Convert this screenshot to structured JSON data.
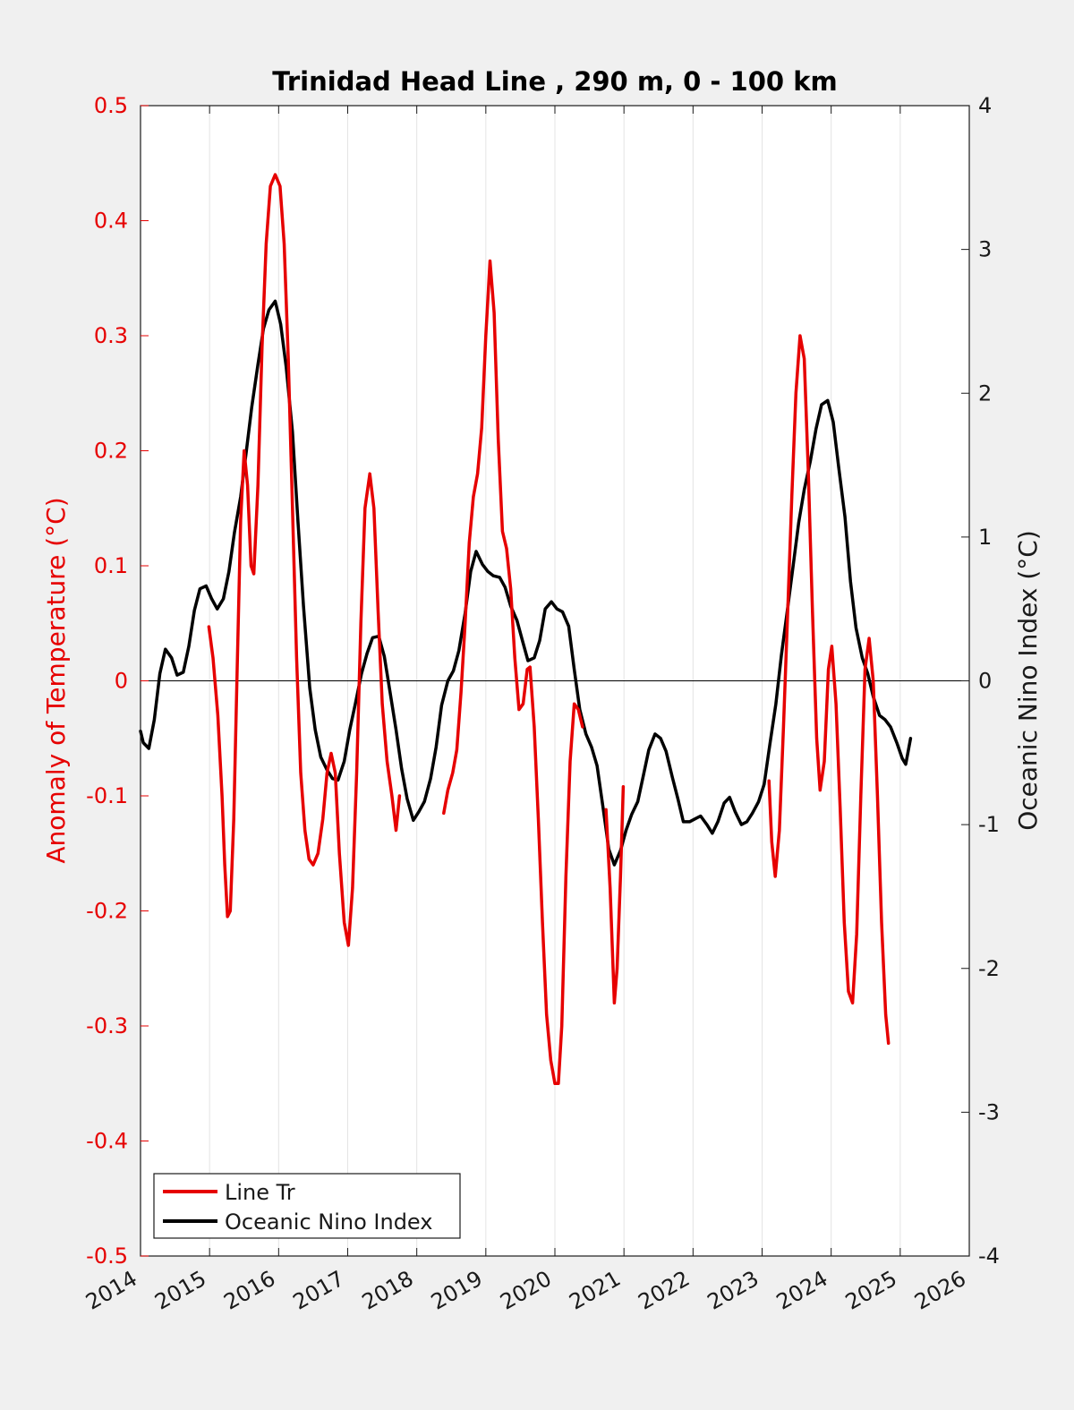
{
  "chart_data": {
    "type": "line",
    "title": "Trinidad Head Line , 290 m, 0 - 100 km",
    "ylabel_left": "Anomaly of Temperature (°C)",
    "ylabel_right": "Oceanic Nino Index (°C)",
    "xlim": [
      2014,
      2026
    ],
    "ylim_left": [
      -0.5,
      0.5
    ],
    "ylim_right": [
      -4,
      4
    ],
    "x_ticks": [
      "2014",
      "2015",
      "2016",
      "2017",
      "2018",
      "2019",
      "2020",
      "2021",
      "2022",
      "2023",
      "2024",
      "2025",
      "2026"
    ],
    "y_ticks_left": [
      "0.5",
      "0.4",
      "0.3",
      "0.2",
      "0.1",
      "0",
      "-0.1",
      "-0.2",
      "-0.3",
      "-0.4",
      "-0.5"
    ],
    "y_ticks_right": [
      "4",
      "3",
      "2",
      "1",
      "0",
      "-1",
      "-2",
      "-3",
      "-4"
    ],
    "grid": "vertical",
    "legend_position": "bottom-left",
    "colors": {
      "temperature": "#e60000",
      "oni": "#000000"
    },
    "series": [
      {
        "name": "Line Tr",
        "axis": "left",
        "segments": [
          [
            [
              2014.99,
              0.047
            ],
            [
              2015.05,
              0.02
            ],
            [
              2015.12,
              -0.03
            ],
            [
              2015.18,
              -0.1
            ],
            [
              2015.22,
              -0.16
            ],
            [
              2015.26,
              -0.205
            ],
            [
              2015.3,
              -0.2
            ],
            [
              2015.35,
              -0.12
            ],
            [
              2015.4,
              0.01
            ],
            [
              2015.45,
              0.14
            ],
            [
              2015.5,
              0.2
            ],
            [
              2015.55,
              0.17
            ],
            [
              2015.6,
              0.1
            ],
            [
              2015.64,
              0.093
            ],
            [
              2015.7,
              0.17
            ],
            [
              2015.76,
              0.29
            ],
            [
              2015.82,
              0.38
            ],
            [
              2015.88,
              0.43
            ],
            [
              2015.95,
              0.44
            ],
            [
              2016.02,
              0.43
            ],
            [
              2016.08,
              0.38
            ],
            [
              2016.14,
              0.28
            ],
            [
              2016.2,
              0.15
            ],
            [
              2016.26,
              0.02
            ],
            [
              2016.32,
              -0.08
            ],
            [
              2016.38,
              -0.13
            ],
            [
              2016.44,
              -0.155
            ],
            [
              2016.5,
              -0.16
            ],
            [
              2016.57,
              -0.15
            ],
            [
              2016.64,
              -0.12
            ],
            [
              2016.7,
              -0.08
            ],
            [
              2016.76,
              -0.063
            ],
            [
              2016.82,
              -0.08
            ],
            [
              2016.88,
              -0.15
            ],
            [
              2016.95,
              -0.21
            ],
            [
              2017.01,
              -0.23
            ],
            [
              2017.07,
              -0.18
            ],
            [
              2017.13,
              -0.08
            ],
            [
              2017.19,
              0.05
            ],
            [
              2017.25,
              0.15
            ],
            [
              2017.32,
              0.18
            ],
            [
              2017.38,
              0.15
            ],
            [
              2017.44,
              0.06
            ],
            [
              2017.5,
              -0.02
            ],
            [
              2017.57,
              -0.07
            ],
            [
              2017.64,
              -0.1
            ],
            [
              2017.7,
              -0.13
            ],
            [
              2017.75,
              -0.1
            ]
          ],
          [
            [
              2018.39,
              -0.115
            ],
            [
              2018.45,
              -0.095
            ],
            [
              2018.52,
              -0.08
            ],
            [
              2018.58,
              -0.06
            ],
            [
              2018.64,
              -0.01
            ],
            [
              2018.7,
              0.05
            ],
            [
              2018.76,
              0.12
            ],
            [
              2018.82,
              0.16
            ],
            [
              2018.88,
              0.18
            ],
            [
              2018.94,
              0.22
            ],
            [
              2019.0,
              0.3
            ],
            [
              2019.06,
              0.365
            ],
            [
              2019.12,
              0.32
            ],
            [
              2019.18,
              0.21
            ],
            [
              2019.24,
              0.13
            ],
            [
              2019.3,
              0.115
            ],
            [
              2019.36,
              0.08
            ],
            [
              2019.42,
              0.02
            ],
            [
              2019.48,
              -0.025
            ],
            [
              2019.54,
              -0.02
            ],
            [
              2019.6,
              0.01
            ],
            [
              2019.64,
              0.012
            ],
            [
              2019.7,
              -0.04
            ],
            [
              2019.76,
              -0.12
            ],
            [
              2019.82,
              -0.21
            ],
            [
              2019.88,
              -0.29
            ],
            [
              2019.94,
              -0.33
            ],
            [
              2020.0,
              -0.35
            ],
            [
              2020.05,
              -0.35
            ],
            [
              2020.1,
              -0.3
            ],
            [
              2020.16,
              -0.17
            ],
            [
              2020.22,
              -0.07
            ],
            [
              2020.28,
              -0.02
            ],
            [
              2020.34,
              -0.025
            ],
            [
              2020.4,
              -0.04
            ]
          ],
          [
            [
              2020.74,
              -0.112
            ],
            [
              2020.8,
              -0.18
            ],
            [
              2020.86,
              -0.28
            ],
            [
              2020.9,
              -0.25
            ],
            [
              2020.95,
              -0.17
            ],
            [
              2020.99,
              -0.092
            ]
          ],
          [
            [
              2023.1,
              -0.087
            ],
            [
              2023.14,
              -0.14
            ],
            [
              2023.19,
              -0.17
            ],
            [
              2023.25,
              -0.13
            ],
            [
              2023.31,
              -0.04
            ],
            [
              2023.37,
              0.06
            ],
            [
              2023.43,
              0.16
            ],
            [
              2023.49,
              0.25
            ],
            [
              2023.55,
              0.3
            ],
            [
              2023.61,
              0.28
            ],
            [
              2023.67,
              0.18
            ],
            [
              2023.73,
              0.06
            ],
            [
              2023.79,
              -0.05
            ],
            [
              2023.84,
              -0.095
            ],
            [
              2023.9,
              -0.07
            ],
            [
              2023.96,
              0.01
            ],
            [
              2024.01,
              0.03
            ],
            [
              2024.07,
              -0.02
            ],
            [
              2024.13,
              -0.11
            ],
            [
              2024.19,
              -0.21
            ],
            [
              2024.25,
              -0.27
            ],
            [
              2024.31,
              -0.28
            ],
            [
              2024.37,
              -0.22
            ],
            [
              2024.43,
              -0.1
            ],
            [
              2024.49,
              0.01
            ],
            [
              2024.55,
              0.037
            ],
            [
              2024.61,
              0.0
            ],
            [
              2024.67,
              -0.1
            ],
            [
              2024.73,
              -0.21
            ],
            [
              2024.79,
              -0.29
            ],
            [
              2024.83,
              -0.315
            ]
          ]
        ]
      },
      {
        "name": "Oceanic Nino Index",
        "axis": "right",
        "segments": [
          [
            [
              2014.0,
              -0.35
            ],
            [
              2014.04,
              -0.43
            ],
            [
              2014.12,
              -0.47
            ],
            [
              2014.2,
              -0.27
            ],
            [
              2014.28,
              0.05
            ],
            [
              2014.36,
              0.22
            ],
            [
              2014.45,
              0.16
            ],
            [
              2014.53,
              0.04
            ],
            [
              2014.62,
              0.06
            ],
            [
              2014.7,
              0.24
            ],
            [
              2014.78,
              0.49
            ],
            [
              2014.86,
              0.64
            ],
            [
              2014.95,
              0.66
            ],
            [
              2015.03,
              0.57
            ],
            [
              2015.11,
              0.5
            ],
            [
              2015.2,
              0.57
            ],
            [
              2015.28,
              0.76
            ],
            [
              2015.36,
              1.03
            ],
            [
              2015.45,
              1.28
            ],
            [
              2015.53,
              1.59
            ],
            [
              2015.61,
              1.9
            ],
            [
              2015.7,
              2.2
            ],
            [
              2015.78,
              2.45
            ],
            [
              2015.86,
              2.58
            ],
            [
              2015.95,
              2.64
            ],
            [
              2016.03,
              2.48
            ],
            [
              2016.11,
              2.18
            ],
            [
              2016.2,
              1.73
            ],
            [
              2016.28,
              1.11
            ],
            [
              2016.36,
              0.52
            ],
            [
              2016.45,
              -0.05
            ],
            [
              2016.53,
              -0.34
            ],
            [
              2016.61,
              -0.53
            ],
            [
              2016.7,
              -0.62
            ],
            [
              2016.78,
              -0.68
            ],
            [
              2016.86,
              -0.69
            ],
            [
              2016.95,
              -0.56
            ],
            [
              2017.03,
              -0.34
            ],
            [
              2017.11,
              -0.16
            ],
            [
              2017.2,
              0.05
            ],
            [
              2017.28,
              0.19
            ],
            [
              2017.36,
              0.3
            ],
            [
              2017.45,
              0.31
            ],
            [
              2017.53,
              0.17
            ],
            [
              2017.61,
              -0.07
            ],
            [
              2017.7,
              -0.34
            ],
            [
              2017.78,
              -0.61
            ],
            [
              2017.86,
              -0.82
            ],
            [
              2017.95,
              -0.97
            ],
            [
              2018.03,
              -0.91
            ],
            [
              2018.11,
              -0.84
            ],
            [
              2018.2,
              -0.68
            ],
            [
              2018.28,
              -0.46
            ],
            [
              2018.36,
              -0.17
            ],
            [
              2018.45,
              0.0
            ],
            [
              2018.53,
              0.07
            ],
            [
              2018.61,
              0.21
            ],
            [
              2018.7,
              0.47
            ],
            [
              2018.78,
              0.76
            ],
            [
              2018.86,
              0.9
            ],
            [
              2018.95,
              0.81
            ],
            [
              2019.03,
              0.76
            ],
            [
              2019.11,
              0.73
            ],
            [
              2019.2,
              0.72
            ],
            [
              2019.28,
              0.65
            ],
            [
              2019.36,
              0.52
            ],
            [
              2019.45,
              0.42
            ],
            [
              2019.53,
              0.28
            ],
            [
              2019.61,
              0.14
            ],
            [
              2019.7,
              0.16
            ],
            [
              2019.78,
              0.28
            ],
            [
              2019.86,
              0.5
            ],
            [
              2019.95,
              0.55
            ],
            [
              2020.03,
              0.5
            ],
            [
              2020.11,
              0.48
            ],
            [
              2020.2,
              0.38
            ],
            [
              2020.28,
              0.08
            ],
            [
              2020.36,
              -0.2
            ],
            [
              2020.45,
              -0.37
            ],
            [
              2020.53,
              -0.46
            ],
            [
              2020.61,
              -0.59
            ],
            [
              2020.7,
              -0.89
            ],
            [
              2020.78,
              -1.17
            ],
            [
              2020.86,
              -1.28
            ],
            [
              2020.95,
              -1.18
            ],
            [
              2021.03,
              -1.04
            ],
            [
              2021.11,
              -0.93
            ],
            [
              2021.2,
              -0.84
            ],
            [
              2021.28,
              -0.66
            ],
            [
              2021.36,
              -0.48
            ],
            [
              2021.45,
              -0.37
            ],
            [
              2021.53,
              -0.4
            ],
            [
              2021.61,
              -0.49
            ],
            [
              2021.7,
              -0.67
            ],
            [
              2021.78,
              -0.82
            ],
            [
              2021.86,
              -0.98
            ],
            [
              2021.95,
              -0.98
            ],
            [
              2022.03,
              -0.96
            ],
            [
              2022.11,
              -0.94
            ],
            [
              2022.2,
              -1.0
            ],
            [
              2022.28,
              -1.06
            ],
            [
              2022.36,
              -0.98
            ],
            [
              2022.45,
              -0.85
            ],
            [
              2022.53,
              -0.81
            ],
            [
              2022.61,
              -0.91
            ],
            [
              2022.7,
              -1.0
            ],
            [
              2022.78,
              -0.98
            ],
            [
              2022.86,
              -0.92
            ],
            [
              2022.95,
              -0.84
            ],
            [
              2023.03,
              -0.72
            ],
            [
              2023.11,
              -0.45
            ],
            [
              2023.2,
              -0.16
            ],
            [
              2023.28,
              0.18
            ],
            [
              2023.36,
              0.47
            ],
            [
              2023.45,
              0.8
            ],
            [
              2023.53,
              1.1
            ],
            [
              2023.61,
              1.33
            ],
            [
              2023.7,
              1.53
            ],
            [
              2023.78,
              1.75
            ],
            [
              2023.86,
              1.92
            ],
            [
              2023.95,
              1.95
            ],
            [
              2024.03,
              1.8
            ],
            [
              2024.11,
              1.48
            ],
            [
              2024.2,
              1.14
            ],
            [
              2024.28,
              0.69
            ],
            [
              2024.36,
              0.37
            ],
            [
              2024.45,
              0.16
            ],
            [
              2024.53,
              0.05
            ],
            [
              2024.61,
              -0.11
            ],
            [
              2024.7,
              -0.24
            ],
            [
              2024.78,
              -0.27
            ],
            [
              2024.86,
              -0.32
            ],
            [
              2024.95,
              -0.43
            ],
            [
              2025.03,
              -0.54
            ],
            [
              2025.08,
              -0.58
            ],
            [
              2025.15,
              -0.4
            ]
          ]
        ]
      }
    ]
  }
}
